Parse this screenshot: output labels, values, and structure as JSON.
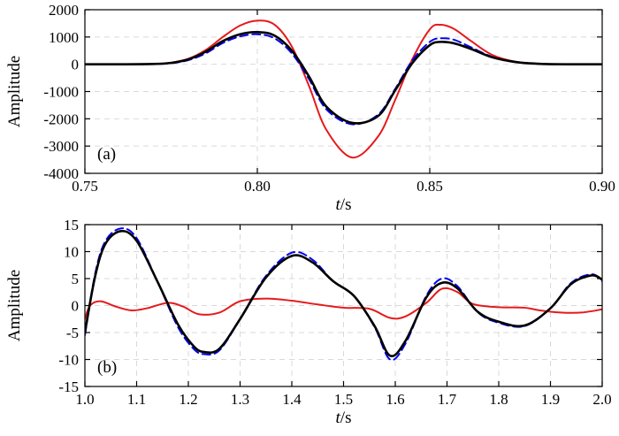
{
  "chart_data": [
    {
      "type": "line",
      "panel_label": "(a)",
      "xlabel_italic": "t",
      "xlabel_unit": "/s",
      "ylabel": "Amplitude",
      "xlim": [
        0.75,
        0.9
      ],
      "ylim": [
        -4000,
        2000
      ],
      "xticks": [
        0.75,
        0.8,
        0.85,
        0.9
      ],
      "xtick_labels": [
        "0.75",
        "0.80",
        "0.85",
        "0.90"
      ],
      "yticks": [
        -4000,
        -3000,
        -2000,
        -1000,
        0,
        1000,
        2000
      ],
      "ytick_labels": [
        "-4000",
        "-3000",
        "-2000",
        "-1000",
        "0",
        "1000",
        "2000"
      ],
      "grid": true,
      "series": [
        {
          "color": "#e41a1c",
          "dash": "solid",
          "x": [
            0.75,
            0.76,
            0.77,
            0.775,
            0.78,
            0.785,
            0.79,
            0.795,
            0.8,
            0.805,
            0.81,
            0.815,
            0.82,
            0.8275,
            0.835,
            0.84,
            0.845,
            0.85,
            0.853,
            0.857,
            0.862,
            0.868,
            0.875,
            0.882,
            0.89,
            0.9
          ],
          "y": [
            0,
            0,
            10,
            60,
            200,
            520,
            1000,
            1420,
            1600,
            1450,
            650,
            -800,
            -2400,
            -3420,
            -2650,
            -1300,
            200,
            1280,
            1450,
            1300,
            850,
            350,
            90,
            15,
            0,
            0
          ]
        },
        {
          "color": "#0000ee",
          "dash": "dashed",
          "x": [
            0.75,
            0.76,
            0.77,
            0.775,
            0.78,
            0.785,
            0.79,
            0.795,
            0.8,
            0.805,
            0.81,
            0.815,
            0.82,
            0.8275,
            0.835,
            0.84,
            0.845,
            0.85,
            0.853,
            0.857,
            0.862,
            0.868,
            0.875,
            0.882,
            0.89,
            0.9
          ],
          "y": [
            0,
            0,
            8,
            40,
            150,
            400,
            780,
            1020,
            1100,
            950,
            400,
            -550,
            -1650,
            -2200,
            -1850,
            -900,
            150,
            820,
            950,
            900,
            620,
            280,
            80,
            15,
            0,
            0
          ]
        },
        {
          "color": "#000000",
          "dash": "solid",
          "x": [
            0.75,
            0.76,
            0.77,
            0.775,
            0.78,
            0.785,
            0.79,
            0.795,
            0.8,
            0.805,
            0.81,
            0.815,
            0.82,
            0.8275,
            0.835,
            0.84,
            0.845,
            0.85,
            0.853,
            0.857,
            0.862,
            0.868,
            0.875,
            0.882,
            0.89,
            0.9
          ],
          "y": [
            0,
            0,
            10,
            50,
            180,
            460,
            850,
            1100,
            1180,
            1050,
            500,
            -450,
            -1550,
            -2150,
            -1900,
            -950,
            50,
            700,
            820,
            770,
            560,
            260,
            80,
            15,
            0,
            0
          ]
        }
      ]
    },
    {
      "type": "line",
      "panel_label": "(b)",
      "xlabel_italic": "t",
      "xlabel_unit": "/s",
      "ylabel": "Amplitude",
      "xlim": [
        1.0,
        2.0
      ],
      "ylim": [
        -15,
        15
      ],
      "xticks": [
        1.0,
        1.1,
        1.2,
        1.3,
        1.4,
        1.5,
        1.6,
        1.7,
        1.8,
        1.9,
        2.0
      ],
      "xtick_labels": [
        "1.0",
        "1.1",
        "1.2",
        "1.3",
        "1.4",
        "1.5",
        "1.6",
        "1.7",
        "1.8",
        "1.9",
        "2.0"
      ],
      "yticks": [
        -15,
        -10,
        -5,
        0,
        5,
        10,
        15
      ],
      "ytick_labels": [
        "-15",
        "-10",
        "-5",
        "0",
        "5",
        "10",
        "15"
      ],
      "grid": true,
      "series": [
        {
          "color": "#e41a1c",
          "dash": "solid",
          "x": [
            1.0,
            1.01,
            1.03,
            1.06,
            1.09,
            1.12,
            1.16,
            1.19,
            1.22,
            1.26,
            1.3,
            1.35,
            1.4,
            1.45,
            1.5,
            1.55,
            1.59,
            1.62,
            1.66,
            1.69,
            1.72,
            1.75,
            1.8,
            1.85,
            1.88,
            1.92,
            1.96,
            2.0
          ],
          "y": [
            -2.5,
            0.0,
            0.8,
            -0.2,
            -0.9,
            -0.5,
            0.5,
            -0.2,
            -1.6,
            -1.3,
            0.8,
            1.3,
            0.9,
            0.2,
            -0.4,
            -0.6,
            -2.3,
            -2.0,
            0.5,
            3.1,
            2.5,
            0.3,
            -0.3,
            -0.4,
            -0.9,
            -1.3,
            -1.3,
            -0.7
          ]
        },
        {
          "color": "#0000ee",
          "dash": "dashed",
          "x": [
            1.0,
            1.02,
            1.04,
            1.07,
            1.1,
            1.14,
            1.18,
            1.21,
            1.23,
            1.26,
            1.3,
            1.35,
            1.4,
            1.44,
            1.48,
            1.52,
            1.56,
            1.59,
            1.62,
            1.66,
            1.69,
            1.72,
            1.76,
            1.8,
            1.85,
            1.9,
            1.94,
            1.98,
            2.0
          ],
          "y": [
            -5.5,
            6.0,
            12.0,
            14.3,
            12.5,
            4.5,
            -4.0,
            -8.0,
            -9.0,
            -8.3,
            -2.5,
            5.5,
            9.8,
            8.5,
            4.5,
            1.8,
            -4.0,
            -10.0,
            -7.0,
            1.8,
            5.0,
            3.6,
            -1.3,
            -3.2,
            -3.8,
            -0.5,
            4.2,
            5.8,
            4.5
          ]
        },
        {
          "color": "#000000",
          "dash": "solid",
          "x": [
            1.0,
            1.02,
            1.04,
            1.07,
            1.1,
            1.14,
            1.18,
            1.21,
            1.23,
            1.26,
            1.3,
            1.35,
            1.4,
            1.44,
            1.48,
            1.52,
            1.56,
            1.59,
            1.62,
            1.66,
            1.69,
            1.72,
            1.76,
            1.8,
            1.85,
            1.9,
            1.94,
            1.98,
            2.0
          ],
          "y": [
            -5.0,
            5.5,
            11.5,
            13.8,
            12.0,
            4.5,
            -3.5,
            -7.5,
            -8.6,
            -8.0,
            -2.5,
            5.2,
            9.2,
            8.0,
            4.5,
            1.8,
            -3.8,
            -9.3,
            -6.5,
            1.5,
            4.2,
            3.2,
            -1.2,
            -3.0,
            -3.7,
            -0.5,
            4.0,
            5.6,
            4.8
          ]
        }
      ]
    }
  ]
}
